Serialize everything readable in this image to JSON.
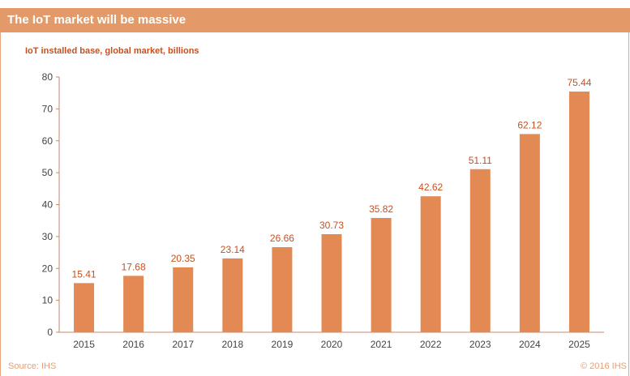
{
  "header": {
    "title": "The IoT market will be massive"
  },
  "chart_subtitle": "IoT installed base, global market, billions",
  "footer": {
    "source": "Source: IHS",
    "copyright": "© 2016 IHS"
  },
  "colors": {
    "bar": "#e38a54",
    "header": "#e39a68",
    "label": "#c8501c"
  },
  "chart_data": {
    "type": "bar",
    "title": "IoT installed base, global market, billions",
    "categories": [
      "2015",
      "2016",
      "2017",
      "2018",
      "2019",
      "2020",
      "2021",
      "2022",
      "2023",
      "2024",
      "2025"
    ],
    "values": [
      15.41,
      17.68,
      20.35,
      23.14,
      26.66,
      30.73,
      35.82,
      42.62,
      51.11,
      62.12,
      75.44
    ],
    "ylim": [
      0,
      80
    ],
    "yticks": [
      0,
      10,
      20,
      30,
      40,
      50,
      60,
      70,
      80
    ],
    "xlabel": "",
    "ylabel": "",
    "grid": false,
    "legend": "none"
  }
}
